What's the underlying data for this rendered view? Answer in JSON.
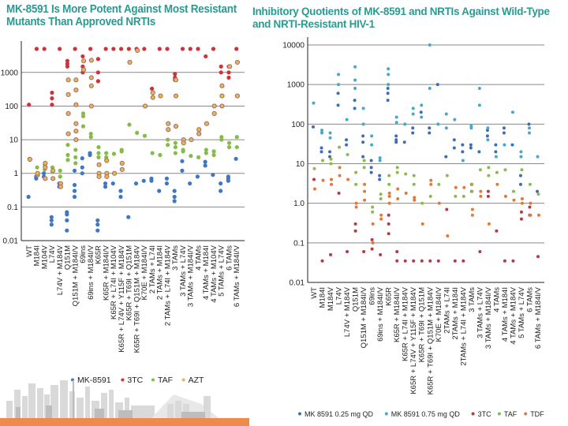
{
  "slide": {
    "accent_color": "#2a9a92",
    "footer_bar_color": "#f08a4b"
  },
  "chart_data": [
    {
      "type": "scatter",
      "title": "MK-8591 Is More Potent Against Most Resistant Mutants Than Approved NRTIs",
      "xlabel": "",
      "ylabel": "",
      "yscale": "log",
      "ylim": [
        0.01,
        5000
      ],
      "yticks": [
        0.01,
        0.1,
        1,
        10,
        100,
        1000
      ],
      "ytick_labels": [
        "0.01",
        "0.1",
        "1",
        "10",
        "100",
        "1000"
      ],
      "grid": true,
      "legend_position": "bottom",
      "categories": [
        "WT",
        "M184I",
        "M104V",
        "L74V",
        "L74V + M184V",
        "Q151M",
        "Q151M + M184I/V",
        "69ins",
        "69ins + M184I/V",
        "K65R",
        "K65R + M184I/V",
        "K65R + L74I + M104V",
        "K65R + L74V + Y115F + M184V",
        "K65R + T69I + Q151M",
        "K65R + T69I + Q151M + M184V",
        "K70E + M184I/V",
        "2 TAMs + L74I",
        "2 TAMs + M184I",
        "2 TAMs + L74I + M184V",
        "3 TAMs",
        "3 TAMs + L74V",
        "3 TAMs + M184I/V",
        "4 TAMs",
        "4 TAMs + M184I",
        "4 TAMs + M104V",
        "5 TAMs + L74V",
        "6 TAMs",
        "6 TAMs + M184I/V"
      ],
      "series": [
        {
          "name": "MK-8591",
          "color": "#3f78c0",
          "values": [
            [
              0.2
            ],
            [
              0.7,
              0.8
            ],
            [
              0.8,
              1.0
            ],
            [
              0.03,
              0.04,
              0.05
            ],
            [
              0.4,
              0.5
            ],
            [
              0.02,
              0.04,
              0.06,
              0.07
            ],
            [
              0.2,
              0.3,
              1.2,
              0.45
            ],
            [
              1.0,
              1.5,
              2.8
            ],
            [
              4,
              3.5
            ],
            [
              0.02,
              0.03,
              0.04
            ],
            [
              0.4,
              0.5
            ],
            [
              0.5
            ],
            [
              0.3,
              0.2
            ],
            [
              0.05
            ],
            [
              0.5
            ],
            [
              0.6
            ],
            [
              0.6,
              0.7
            ],
            [
              0.3
            ],
            [
              0.7,
              0.5
            ],
            [
              0.15,
              0.2,
              0.3
            ],
            [
              2.3,
              1.2
            ],
            [
              0.5
            ],
            [
              0.8
            ],
            [
              1.7,
              2.2
            ],
            [
              0.9
            ],
            [
              0.3,
              0.5
            ],
            [
              0.6,
              0.7,
              0.8
            ],
            [
              2.7
            ]
          ]
        },
        {
          "name": "3TC",
          "color": "#d0323a",
          "values": [
            [
              110
            ],
            [
              5000
            ],
            [
              5000
            ],
            [
              110,
              170,
              250
            ],
            [
              5000
            ],
            [
              1500,
              2200,
              1800
            ],
            [
              5000
            ],
            [
              1000,
              1500,
              3000
            ],
            [
              5000
            ],
            [
              550,
              1000,
              2500
            ],
            [
              5000
            ],
            [
              5000
            ],
            [
              5000
            ],
            [
              5000
            ],
            [
              5000
            ],
            [
              5000
            ],
            [
              330
            ],
            [
              5000
            ],
            [
              5000
            ],
            [
              600,
              700,
              900
            ],
            [
              5000
            ],
            [
              5000
            ],
            [
              5000
            ],
            [
              3000
            ],
            [
              5000
            ],
            [
              1000,
              1500
            ],
            [
              700,
              1000,
              1500
            ],
            [
              5000
            ]
          ]
        },
        {
          "name": "TAF",
          "color": "#86bb4a",
          "values": [
            [
              2.7
            ],
            [
              1.5
            ],
            [
              1.8,
              1.3
            ],
            [
              1.5,
              1.1
            ],
            [
              1.2,
              0.8
            ],
            [
              7,
              3.5,
              2.5
            ],
            [
              2,
              5,
              3
            ],
            [
              50,
              25,
              60
            ],
            [
              15,
              12
            ],
            [
              6,
              4,
              3
            ],
            [
              4,
              2.5,
              3
            ],
            [
              3.8
            ],
            [
              5,
              4.5
            ],
            [
              28
            ],
            [
              16
            ],
            [
              13
            ],
            [
              4
            ],
            [
              3.5
            ],
            [
              10,
              7
            ],
            [
              8,
              6,
              4
            ],
            [
              5,
              4.5
            ],
            [
              3.3
            ],
            [
              3
            ],
            [
              5,
              4
            ],
            [
              4.5,
              3.5
            ],
            [
              10,
              12
            ],
            [
              6,
              8
            ],
            [
              6,
              12
            ]
          ]
        },
        {
          "name": "AZT",
          "color": "#e8b64a",
          "values": [
            [
              2.6
            ],
            [
              0.9,
              1.0
            ],
            [
              1.5,
              2.0,
              0.7
            ],
            [
              1.2,
              0.7
            ],
            [
              0.5,
              0.4
            ],
            [
              600,
              220,
              60,
              15
            ],
            [
              600,
              300,
              110,
              30,
              18,
              10
            ],
            [
              2200,
              1200
            ],
            [
              2300,
              700,
              400,
              100
            ],
            [
              1.8,
              1.0,
              0.8
            ],
            [
              2.4,
              1.0,
              0.8
            ],
            [
              1.0
            ],
            [
              2.0,
              1.3
            ],
            [
              2000
            ],
            [
              4500
            ],
            [
              100
            ],
            [
              180,
              250
            ],
            [
              200
            ],
            [
              30,
              20
            ],
            [
              600,
              200,
              25
            ],
            [
              10,
              8
            ],
            [
              10
            ],
            [
              20,
              15
            ],
            [
              30
            ],
            [
              100,
              60
            ],
            [
              400,
              200,
              100
            ],
            [
              1500
            ],
            [
              2000,
              200
            ]
          ]
        }
      ]
    },
    {
      "type": "scatter",
      "title": "Inhibitory Quotients of MK-8591 and NRTIs Against Wild-Type and NRTI-Resistant HIV-1",
      "xlabel": "",
      "ylabel": "",
      "yscale": "log",
      "ylim": [
        0.01,
        10000
      ],
      "yticks": [
        0.01,
        0.1,
        1.0,
        10,
        100,
        1000,
        10000
      ],
      "ytick_labels": [
        "0.01",
        "0.1",
        "1.0",
        "10",
        "100",
        "1000",
        "10000"
      ],
      "grid": true,
      "legend_position": "bottom",
      "categories": [
        "WT",
        "M184I",
        "M184V",
        "L74V",
        "L74V + M184V",
        "Q151M",
        "Q151M + M184I/V",
        "69ins",
        "69ins + M184I/V",
        "K65R",
        "K65R + M184I/V",
        "K65R + L74I + M184V",
        "K65R + L74V + Y115F + M184V",
        "K65R + T69I + Q151M",
        "K65R + T69I + Q151M + M184V",
        "K70E + M184I/V",
        "2TAMs + L74I",
        "2TAMs + M184I",
        "2TAMs + L74I + M184V",
        "3 TAMs",
        "3 TAMs + L74V",
        "3 TAMs + M184I/V",
        "4 TAMs",
        "4 TAMs + M184I",
        "4 TAMs + M184V",
        "5 TAMs + L74V",
        "6 TAMs",
        "6 TAMs + M184I/V"
      ],
      "series": [
        {
          "name": "MK 8591 0.25 mg QD",
          "color": "#3d6db5",
          "values": [
            [
              85
            ],
            [
              20,
              25
            ],
            [
              15,
              20
            ],
            [
              300,
              600
            ],
            [
              30,
              40
            ],
            [
              250,
              400
            ],
            [
              35,
              50,
              15
            ],
            [
              8,
              12,
              6
            ],
            [
              4,
              5
            ],
            [
              400,
              600,
              800
            ],
            [
              35,
              40,
              50
            ],
            [
              35
            ],
            [
              60,
              80
            ],
            [
              200
            ],
            [
              60,
              80
            ],
            [
              1000
            ],
            [
              15
            ],
            [
              40,
              25
            ],
            [
              20,
              30
            ],
            [
              30,
              25
            ],
            [
              20
            ],
            [
              50,
              70
            ],
            [
              20,
              30
            ],
            [
              60,
              80
            ],
            [
              30
            ],
            [
              3,
              5
            ],
            [
              100
            ],
            [
              2
            ]
          ]
        },
        {
          "name": "MK 8591 0.75 mg QD",
          "color": "#48a8c8",
          "values": [
            [
              340
            ],
            [
              60,
              70
            ],
            [
              45,
              60
            ],
            [
              1000,
              1800
            ],
            [
              130
            ],
            [
              800,
              1300,
              2800
            ],
            [
              100,
              250
            ],
            [
              30,
              50
            ],
            [
              12,
              14
            ],
            [
              1000,
              1800,
              2500
            ],
            [
              110,
              150
            ],
            [
              100
            ],
            [
              180,
              250
            ],
            [
              150,
              300
            ],
            [
              800,
              10000
            ],
            [
              100
            ],
            [
              80,
              180
            ],
            [
              130
            ],
            [
              12
            ],
            [
              90,
              80
            ],
            [
              800,
              300
            ],
            [
              40,
              80
            ],
            [
              15
            ],
            [
              30
            ],
            [
              200
            ],
            [
              15,
              20
            ],
            [
              60,
              80
            ],
            [
              15
            ]
          ]
        },
        {
          "name": "3TC",
          "color": "#b5394a",
          "values": [
            [
              4
            ],
            [
              0.035
            ],
            [
              0.05
            ],
            [
              1.8
            ],
            [
              0.06
            ],
            [
              0.2,
              0.3
            ],
            [
              0.06
            ],
            [
              0.07,
              0.12
            ],
            [
              0.05
            ],
            [
              0.17,
              0.3,
              0.5
            ],
            [
              0.035,
              0.06
            ],
            [
              0.035
            ],
            [
              0.035
            ],
            [
              0.035
            ],
            [
              0.035
            ],
            [
              0.035
            ],
            [
              0.7
            ],
            [
              0.035
            ],
            [
              0.035
            ],
            [
              2.0,
              3.0
            ],
            [
              0.06
            ],
            [
              2.0,
              1.5
            ],
            [
              0.2
            ],
            [
              0.035
            ],
            [
              0.035
            ],
            [
              0.4,
              0.6
            ],
            [
              0.5,
              0.8
            ],
            [
              0.045
            ]
          ]
        },
        {
          "name": "TAF",
          "color": "#8cba52",
          "values": [
            [
              7.5
            ],
            [
              12
            ],
            [
              10,
              13
            ],
            [
              26
            ],
            [
              17
            ],
            [
              6,
              3
            ],
            [
              8,
              12
            ],
            [
              0.6,
              0.8
            ],
            [
              1.3,
              1.7
            ],
            [
              3,
              5
            ],
            [
              6,
              8
            ],
            [
              5.5
            ],
            [
              3,
              5
            ],
            [
              1.0
            ],
            [
              1.5
            ],
            [
              3
            ],
            [
              5
            ],
            [
              1.5
            ],
            [
              1.5
            ],
            [
              3,
              2
            ],
            [
              7
            ],
            [
              8,
              5
            ],
            [
              6
            ],
            [
              7
            ],
            [
              2
            ],
            [
              7
            ],
            [
              3
            ],
            [
              1.7
            ]
          ]
        },
        {
          "name": "TDF",
          "color": "#e07a3c",
          "values": [
            [
              2.3
            ],
            [
              3.8
            ],
            [
              3,
              4
            ],
            [
              5,
              8
            ],
            [
              4
            ],
            [
              0.8,
              1.0
            ],
            [
              2,
              3,
              1.2
            ],
            [
              0.1,
              0.3
            ],
            [
              0.4,
              0.5
            ],
            [
              1.0,
              1.5,
              1.8
            ],
            [
              1.3,
              2.3
            ],
            [
              1.8
            ],
            [
              1.2,
              1.4
            ],
            [
              0.3
            ],
            [
              3.8,
              3
            ],
            [
              1.0
            ],
            [
              0.15
            ],
            [
              2.5
            ],
            [
              2.5
            ],
            [
              0.5,
              0.7
            ],
            [
              1.5,
              2.0
            ],
            [
              0.3
            ],
            [
              3
            ],
            [
              1.5
            ],
            [
              1.2
            ],
            [
              1.0,
              1.3
            ],
            [
              0.5,
              1.0
            ],
            [
              0.5
            ]
          ]
        }
      ]
    }
  ],
  "legends": {
    "left": [
      {
        "label": "MK-8591",
        "color": "#3f78c0"
      },
      {
        "label": "3TC",
        "color": "#d0323a"
      },
      {
        "label": "TAF",
        "color": "#86bb4a"
      },
      {
        "label": "AZT",
        "color": "#e8b64a"
      }
    ],
    "right": [
      {
        "label": "MK 8591 0.25 mg QD",
        "color": "#3d6db5"
      },
      {
        "label": "MK 8591 0.75 mg QD",
        "color": "#48a8c8"
      },
      {
        "label": "3TC",
        "color": "#b5394a"
      },
      {
        "label": "TAF",
        "color": "#8cba52"
      },
      {
        "label": "TDF",
        "color": "#e07a3c"
      }
    ]
  }
}
